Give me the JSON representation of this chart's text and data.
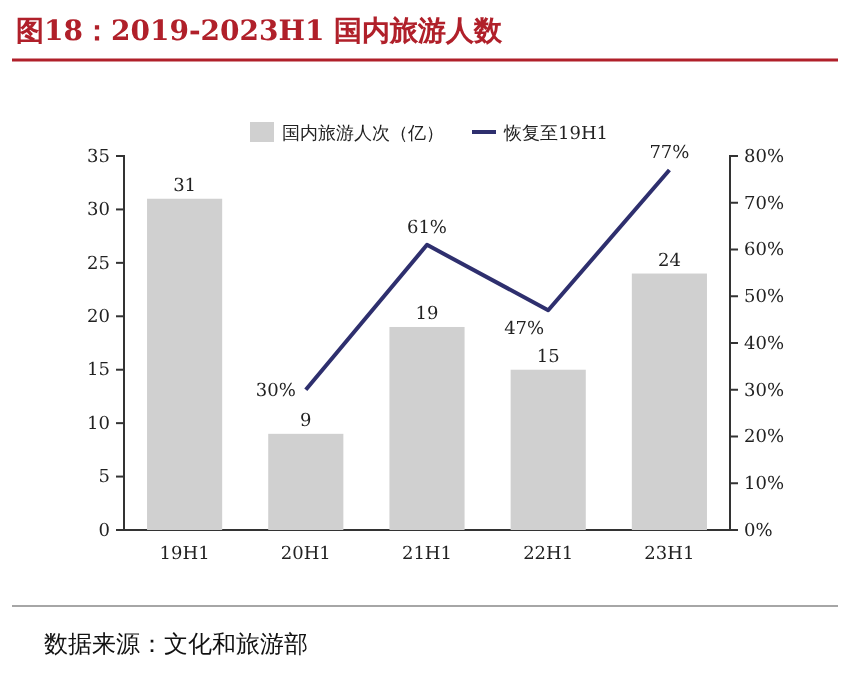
{
  "chart_data": {
    "type": "bar",
    "title": "图18：2019-2023H1 国内旅游人数",
    "categories": [
      "19H1",
      "20H1",
      "21H1",
      "22H1",
      "23H1"
    ],
    "series": [
      {
        "name": "国内旅游人次（亿）",
        "color": "#d0d0d0",
        "values": [
          31,
          9,
          19,
          15,
          24
        ],
        "value_labels": [
          "31",
          "9",
          "19",
          "15",
          "24"
        ]
      },
      {
        "name": "恢复至19H1",
        "type": "line",
        "axis": "y2",
        "color": "#2e2f6e",
        "values": [
          null,
          30,
          61,
          47,
          77
        ],
        "value_labels": [
          null,
          "30%",
          "61%",
          "47%",
          "77%"
        ]
      }
    ],
    "ylim": [
      0,
      35
    ],
    "yticks": [
      0,
      5,
      10,
      15,
      20,
      25,
      30,
      35
    ],
    "y2lim": [
      0,
      80
    ],
    "y2ticks": [
      {
        "value": 0,
        "label": "0%"
      },
      {
        "value": 10,
        "label": "10%"
      },
      {
        "value": 20,
        "label": "20%"
      },
      {
        "value": 30,
        "label": "30%"
      },
      {
        "value": 40,
        "label": "40%"
      },
      {
        "value": 50,
        "label": "50%"
      },
      {
        "value": 60,
        "label": "60%"
      },
      {
        "value": 70,
        "label": "70%"
      },
      {
        "value": 80,
        "label": "80%"
      }
    ],
    "grid": false,
    "legend": "top",
    "marker": "none",
    "line_style": "solid",
    "annotations": [
      "数据来源：文化和旅游部"
    ]
  }
}
